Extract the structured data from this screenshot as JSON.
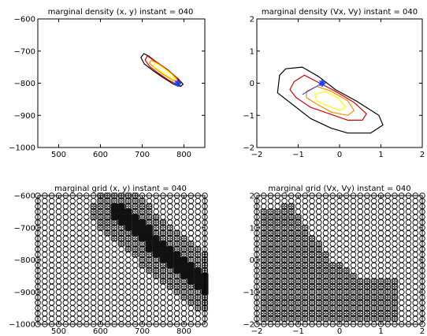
{
  "figure": {
    "background": "#ffffff",
    "colors": {
      "axis": "#000000",
      "contour_outer": "#000000",
      "contour_red": "#d40000",
      "contour_orange": "#ff8a00",
      "contour_yellow": "#ffff00",
      "marker": "#1f3cff",
      "grid_dense": "#000000"
    }
  },
  "chart_data": [
    {
      "type": "contour",
      "title": "marginal density (x, y) instant = 040",
      "xlabel": "",
      "ylabel": "",
      "xlim": [
        450,
        850
      ],
      "ylim": [
        -1000,
        -600
      ],
      "xticks": [
        500,
        600,
        700,
        800
      ],
      "yticks": [
        -1000,
        -900,
        -800,
        -700,
        -600
      ],
      "xtick_labels": [
        "500",
        "600",
        "700",
        "800"
      ],
      "ytick_labels": [
        "−1000",
        "−900",
        "−800",
        "−700",
        "−600"
      ],
      "grid": false,
      "contours": [
        {
          "level": "outer",
          "points": [
            [
              704,
              -708
            ],
            [
              716,
              -716
            ],
            [
              738,
              -738
            ],
            [
              760,
              -760
            ],
            [
              785,
              -785
            ],
            [
              798,
              -803
            ],
            [
              792,
              -810
            ],
            [
              775,
              -803
            ],
            [
              750,
              -782
            ],
            [
              725,
              -760
            ],
            [
              705,
              -740
            ],
            [
              697,
              -720
            ]
          ]
        },
        {
          "level": "red",
          "points": [
            [
              712,
              -715
            ],
            [
              735,
              -735
            ],
            [
              760,
              -757
            ],
            [
              782,
              -782
            ],
            [
              792,
              -800
            ],
            [
              786,
              -805
            ],
            [
              765,
              -792
            ],
            [
              740,
              -770
            ],
            [
              718,
              -748
            ],
            [
              707,
              -728
            ]
          ]
        },
        {
          "level": "orange",
          "points": [
            [
              722,
              -728
            ],
            [
              742,
              -743
            ],
            [
              762,
              -762
            ],
            [
              782,
              -785
            ],
            [
              786,
              -797
            ],
            [
              772,
              -790
            ],
            [
              750,
              -772
            ],
            [
              732,
              -755
            ],
            [
              717,
              -738
            ]
          ]
        },
        {
          "level": "yellow",
          "points": [
            [
              730,
              -736
            ],
            [
              750,
              -752
            ],
            [
              770,
              -772
            ],
            [
              781,
              -790
            ],
            [
              770,
              -785
            ],
            [
              748,
              -766
            ],
            [
              727,
              -748
            ]
          ]
        }
      ],
      "marker": {
        "x": 785,
        "y": -800,
        "symbol": "star"
      }
    },
    {
      "type": "contour",
      "title": "marginal density (Vx, Vy) instant = 040",
      "xlabel": "",
      "ylabel": "",
      "xlim": [
        -2,
        2
      ],
      "ylim": [
        -2,
        2
      ],
      "xticks": [
        -2,
        -1,
        0,
        1,
        2
      ],
      "yticks": [
        -2,
        -1,
        0,
        1,
        2
      ],
      "xtick_labels": [
        "−2",
        "−1",
        "0",
        "1",
        "2"
      ],
      "ytick_labels": [
        "−2",
        "−1",
        "0",
        "1",
        "2"
      ],
      "grid": false,
      "contours": [
        {
          "level": "outer",
          "points": [
            [
              -1.45,
              0.25
            ],
            [
              -1.3,
              0.45
            ],
            [
              -0.9,
              0.5
            ],
            [
              -0.5,
              0.2
            ],
            [
              -0.1,
              -0.2
            ],
            [
              0.4,
              -0.55
            ],
            [
              0.95,
              -1.0
            ],
            [
              1.05,
              -1.3
            ],
            [
              0.75,
              -1.55
            ],
            [
              0.2,
              -1.55
            ],
            [
              -0.2,
              -1.4
            ],
            [
              -0.7,
              -1.1
            ],
            [
              -1.1,
              -0.7
            ],
            [
              -1.5,
              -0.3
            ]
          ]
        },
        {
          "level": "red",
          "points": [
            [
              -1.1,
              0.05
            ],
            [
              -0.85,
              0.25
            ],
            [
              -0.55,
              0.05
            ],
            [
              -0.1,
              -0.25
            ],
            [
              0.35,
              -0.6
            ],
            [
              0.65,
              -0.95
            ],
            [
              0.55,
              -1.15
            ],
            [
              0.2,
              -1.15
            ],
            [
              -0.25,
              -0.95
            ],
            [
              -0.7,
              -0.75
            ],
            [
              -1.05,
              -0.45
            ],
            [
              -1.2,
              -0.2
            ]
          ]
        },
        {
          "level": "orange",
          "points": [
            [
              -0.8,
              -0.25
            ],
            [
              -0.55,
              -0.1
            ],
            [
              -0.2,
              -0.25
            ],
            [
              0.2,
              -0.55
            ],
            [
              0.35,
              -0.85
            ],
            [
              0.2,
              -1.0
            ],
            [
              -0.2,
              -0.9
            ],
            [
              -0.55,
              -0.65
            ],
            [
              -0.8,
              -0.45
            ]
          ]
        },
        {
          "level": "yellow",
          "points": [
            [
              -0.6,
              -0.35
            ],
            [
              -0.35,
              -0.25
            ],
            [
              -0.05,
              -0.45
            ],
            [
              0.15,
              -0.75
            ],
            [
              0.0,
              -0.85
            ],
            [
              -0.3,
              -0.7
            ],
            [
              -0.55,
              -0.55
            ]
          ]
        }
      ],
      "marker": {
        "x": -0.42,
        "y": 0.0,
        "symbol": "star"
      },
      "marker_line": [
        [
          -0.42,
          0.0
        ],
        [
          -0.9,
          -0.35
        ]
      ]
    },
    {
      "type": "scatter",
      "title": "marginal grid (x, y) instant = 040",
      "xlabel": "",
      "ylabel": "",
      "xlim": [
        450,
        850
      ],
      "ylim": [
        -1000,
        -600
      ],
      "xticks": [
        500,
        600,
        700,
        800
      ],
      "yticks": [
        -1000,
        -900,
        -800,
        -700,
        -600
      ],
      "xtick_labels": [
        "500",
        "600",
        "700",
        "800"
      ],
      "ytick_labels": [
        "−1000",
        "−900",
        "−800",
        "−700",
        "−600"
      ],
      "grid": false,
      "grid_nodes": {
        "nx": 25,
        "ny": 25
      },
      "dense_band": {
        "start": [
          640,
          -650
        ],
        "end": [
          850,
          -880
        ],
        "inner_width": 40,
        "outer_width": 120
      }
    },
    {
      "type": "scatter",
      "title": "marginal grid (Vx, Vy) instant = 040",
      "xlabel": "",
      "ylabel": "",
      "xlim": [
        -2,
        2
      ],
      "ylim": [
        -2,
        2
      ],
      "xticks": [
        -2,
        -1,
        0,
        1,
        2
      ],
      "yticks": [
        -2,
        -1,
        0,
        1,
        2
      ],
      "xtick_labels": [
        "−2",
        "−1",
        "0",
        "1",
        "2"
      ],
      "ytick_labels": [
        "−2",
        "−1",
        "0",
        "1",
        "2"
      ],
      "grid": false,
      "grid_nodes": {
        "nx": 25,
        "ny": 25
      },
      "dense_region": [
        [
          -1.9,
          1.55
        ],
        [
          -1.2,
          1.75
        ],
        [
          -0.2,
          0.0
        ],
        [
          0.6,
          -0.6
        ],
        [
          1.5,
          -0.65
        ],
        [
          1.5,
          -1.95
        ],
        [
          -1.9,
          -1.95
        ]
      ]
    }
  ]
}
